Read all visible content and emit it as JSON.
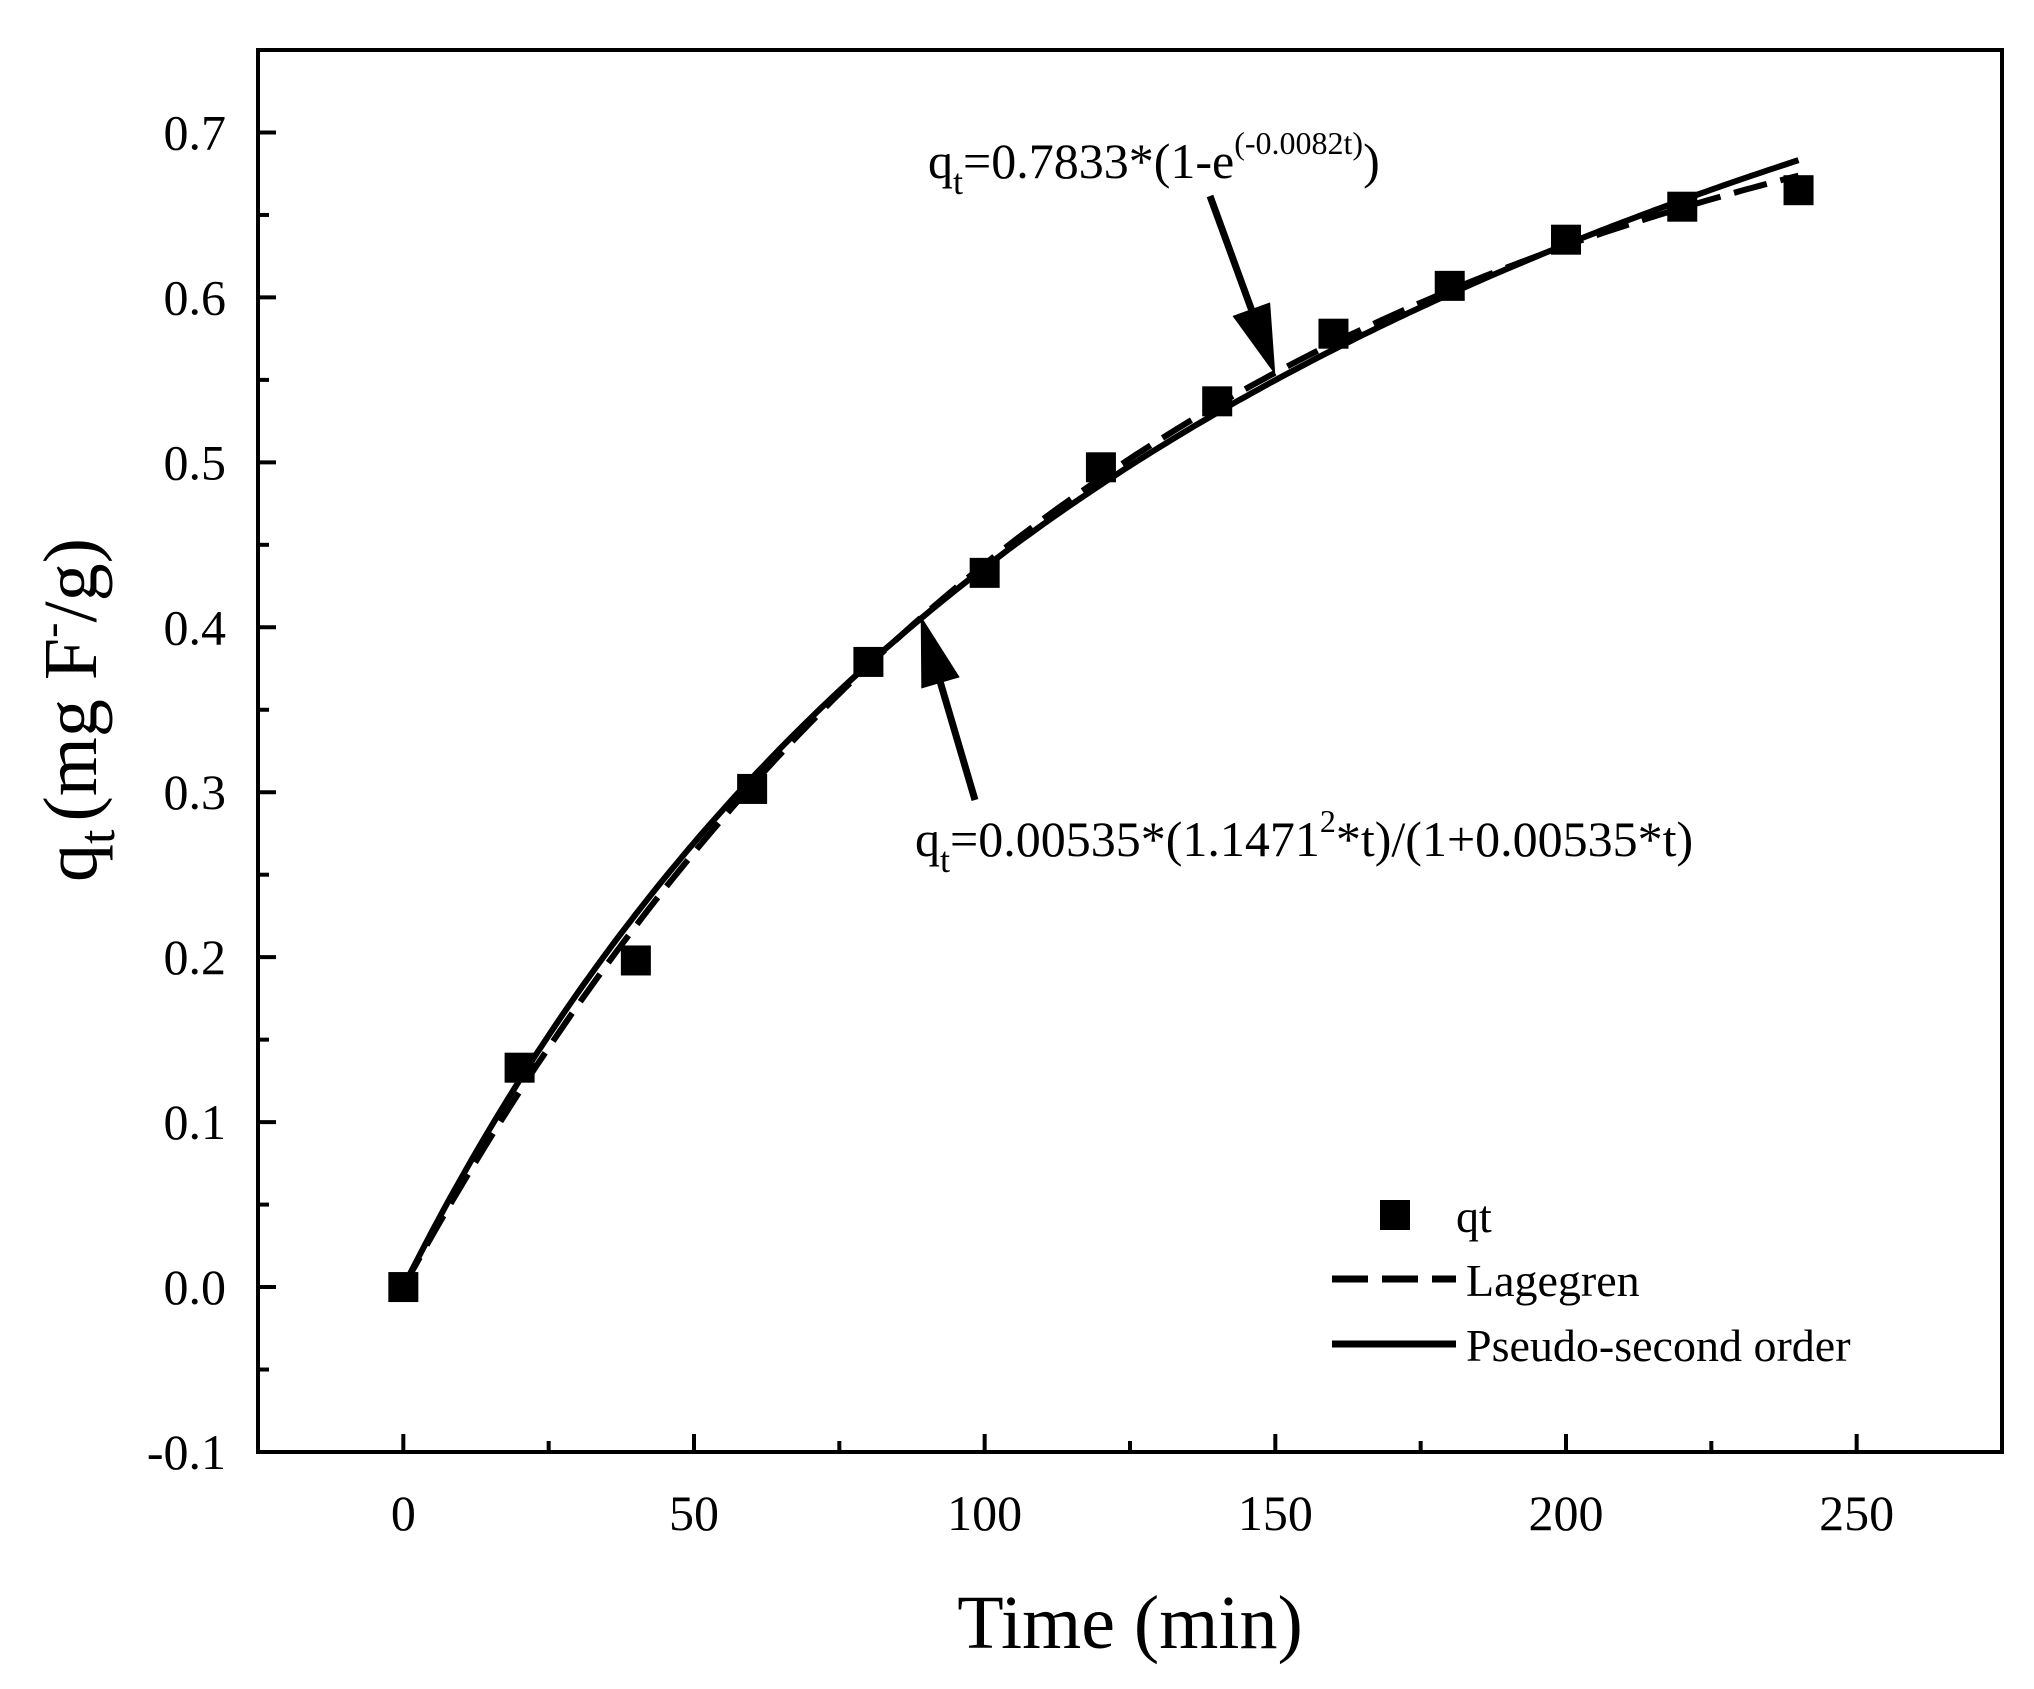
{
  "chart_data": {
    "type": "scatter",
    "title": "",
    "xlabel": "Time (min)",
    "ylabel_parts": {
      "q": "q",
      "sub": "t",
      "open": "(mg F",
      "sup": "-",
      "close": "/g)"
    },
    "xlim": [
      -25,
      275
    ],
    "ylim": [
      -0.1,
      0.75
    ],
    "xticks": [
      0,
      50,
      100,
      150,
      200,
      250
    ],
    "xtick_labels": [
      "0",
      "50",
      "100",
      "150",
      "200",
      "250"
    ],
    "yticks": [
      -0.1,
      0.0,
      0.1,
      0.2,
      0.3,
      0.4,
      0.5,
      0.6,
      0.7
    ],
    "ytick_labels": [
      "-0.1",
      "0.0",
      "0.1",
      "0.2",
      "0.3",
      "0.4",
      "0.5",
      "0.6",
      "0.7"
    ],
    "x_minor_step": 25,
    "y_minor_step": 0.05,
    "grid": false,
    "legend_position": "bottom-right",
    "series": [
      {
        "name": "qt",
        "kind": "marker",
        "x": [
          0,
          20,
          40,
          60,
          80,
          100,
          120,
          140,
          160,
          180,
          200,
          220,
          240
        ],
        "y": [
          0.0,
          0.133,
          0.198,
          0.302,
          0.379,
          0.433,
          0.497,
          0.537,
          0.578,
          0.607,
          0.635,
          0.655,
          0.665
        ]
      },
      {
        "name": "Lagegren",
        "kind": "dashed-line",
        "model": "first-order",
        "qe": 0.7833,
        "k": 0.0082,
        "x_range": [
          0,
          240
        ]
      },
      {
        "name": "Pseudo-second order",
        "kind": "solid-line",
        "model": "second-order",
        "qe": 1.1471,
        "k": 0.00535,
        "x_range": [
          0,
          240
        ]
      }
    ],
    "annotations": [
      {
        "id": "first-order",
        "q": "q",
        "sub": "t",
        "before": "=0.7833*(1-e",
        "sup": "(-0.0082t)",
        "after": ")",
        "arrow_to": {
          "x": 150,
          "y": 0.553
        }
      },
      {
        "id": "second-order",
        "q": "q",
        "sub": "t",
        "before": "=0.00535*(1.1471",
        "sup": "2",
        "after": "*t)/(1+0.00535*t)",
        "arrow_to": {
          "x": 89,
          "y": 0.407
        }
      }
    ]
  },
  "colors": {
    "ink": "#000000",
    "background": "#ffffff"
  }
}
